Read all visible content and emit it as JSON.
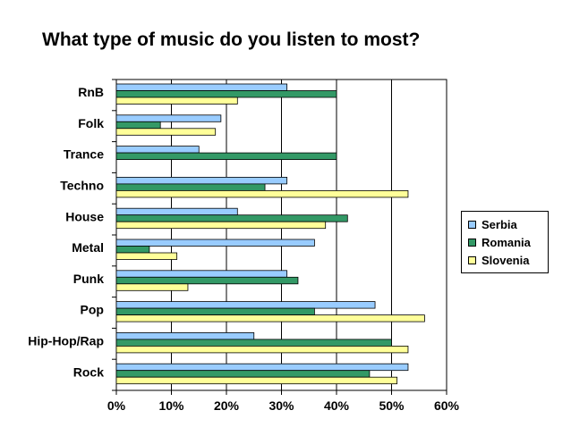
{
  "chart_data": {
    "type": "bar",
    "orientation": "horizontal",
    "title": "What type of music do you listen to most?",
    "categories": [
      "RnB",
      "Folk",
      "Trance",
      "Techno",
      "House",
      "Metal",
      "Punk",
      "Pop",
      "Hip-Hop/Rap",
      "Rock"
    ],
    "series": [
      {
        "name": "Serbia",
        "color": "#99ccff",
        "values": [
          31,
          19,
          15,
          31,
          22,
          36,
          31,
          47,
          25,
          53
        ]
      },
      {
        "name": "Romania",
        "color": "#339966",
        "values": [
          40,
          8,
          40,
          27,
          42,
          6,
          33,
          36,
          50,
          46
        ]
      },
      {
        "name": "Slovenia",
        "color": "#ffff99",
        "values": [
          22,
          18,
          0,
          53,
          38,
          11,
          13,
          56,
          53,
          51
        ]
      }
    ],
    "xlim": [
      0,
      60
    ],
    "x_ticks": [
      "0%",
      "10%",
      "20%",
      "30%",
      "40%",
      "50%",
      "60%"
    ],
    "grid": true,
    "legend_position": "right"
  }
}
